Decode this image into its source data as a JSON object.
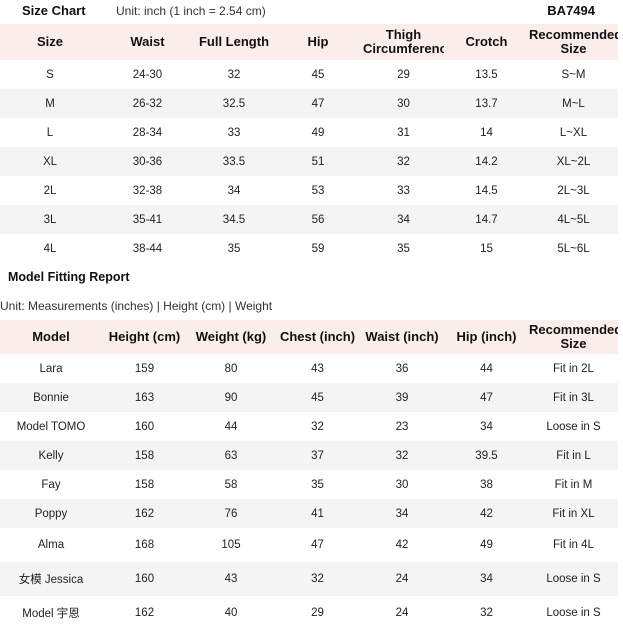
{
  "size_chart": {
    "title": "Size Chart",
    "unit": "Unit: inch (1 inch = 2.54 cm)",
    "code": "BA7494",
    "headers": [
      "Size",
      "Waist",
      "Full Length",
      "Hip",
      "Thigh Circumference",
      "Crotch",
      "Recommended Size"
    ],
    "rows": [
      [
        "S",
        "24-30",
        "32",
        "45",
        "29",
        "13.5",
        "S~M"
      ],
      [
        "M",
        "26-32",
        "32.5",
        "47",
        "30",
        "13.7",
        "M~L"
      ],
      [
        "L",
        "28-34",
        "33",
        "49",
        "31",
        "14",
        "L~XL"
      ],
      [
        "XL",
        "30-36",
        "33.5",
        "51",
        "32",
        "14.2",
        "XL~2L"
      ],
      [
        "2L",
        "32-38",
        "34",
        "53",
        "33",
        "14.5",
        "2L~3L"
      ],
      [
        "3L",
        "35-41",
        "34.5",
        "56",
        "34",
        "14.7",
        "4L~5L"
      ],
      [
        "4L",
        "38-44",
        "35",
        "59",
        "35",
        "15",
        "5L~6L"
      ]
    ]
  },
  "fitting_report": {
    "title": "Model Fitting Report",
    "unit": "Unit: Measurements (inches) | Height (cm) | Weight (kg)",
    "headers": [
      "Model",
      "Height (cm)",
      "Weight (kg)",
      "Chest (inch)",
      "Waist (inch)",
      "Hip (inch)",
      "Recommended Size"
    ],
    "rows": [
      [
        "Lara",
        "159",
        "80",
        "43",
        "36",
        "44",
        "Fit in 2L"
      ],
      [
        "Bonnie",
        "163",
        "90",
        "45",
        "39",
        "47",
        "Fit in 3L"
      ],
      [
        "Model TOMO",
        "160",
        "44",
        "32",
        "23",
        "34",
        "Loose in S"
      ],
      [
        "Kelly",
        "158",
        "63",
        "37",
        "32",
        "39.5",
        "Fit in L"
      ],
      [
        "Fay",
        "158",
        "58",
        "35",
        "30",
        "38",
        "Fit in M"
      ],
      [
        "Poppy",
        "162",
        "76",
        "41",
        "34",
        "42",
        "Fit in XL"
      ],
      [
        "Alma",
        "168",
        "105",
        "47",
        "42",
        "49",
        "Fit in 4L"
      ],
      [
        "女模 Jessica",
        "160",
        "43",
        "32",
        "24",
        "34",
        "Loose in S"
      ],
      [
        "Model 宇恩",
        "162",
        "40",
        "29",
        "24",
        "32",
        "Loose in S"
      ]
    ]
  }
}
